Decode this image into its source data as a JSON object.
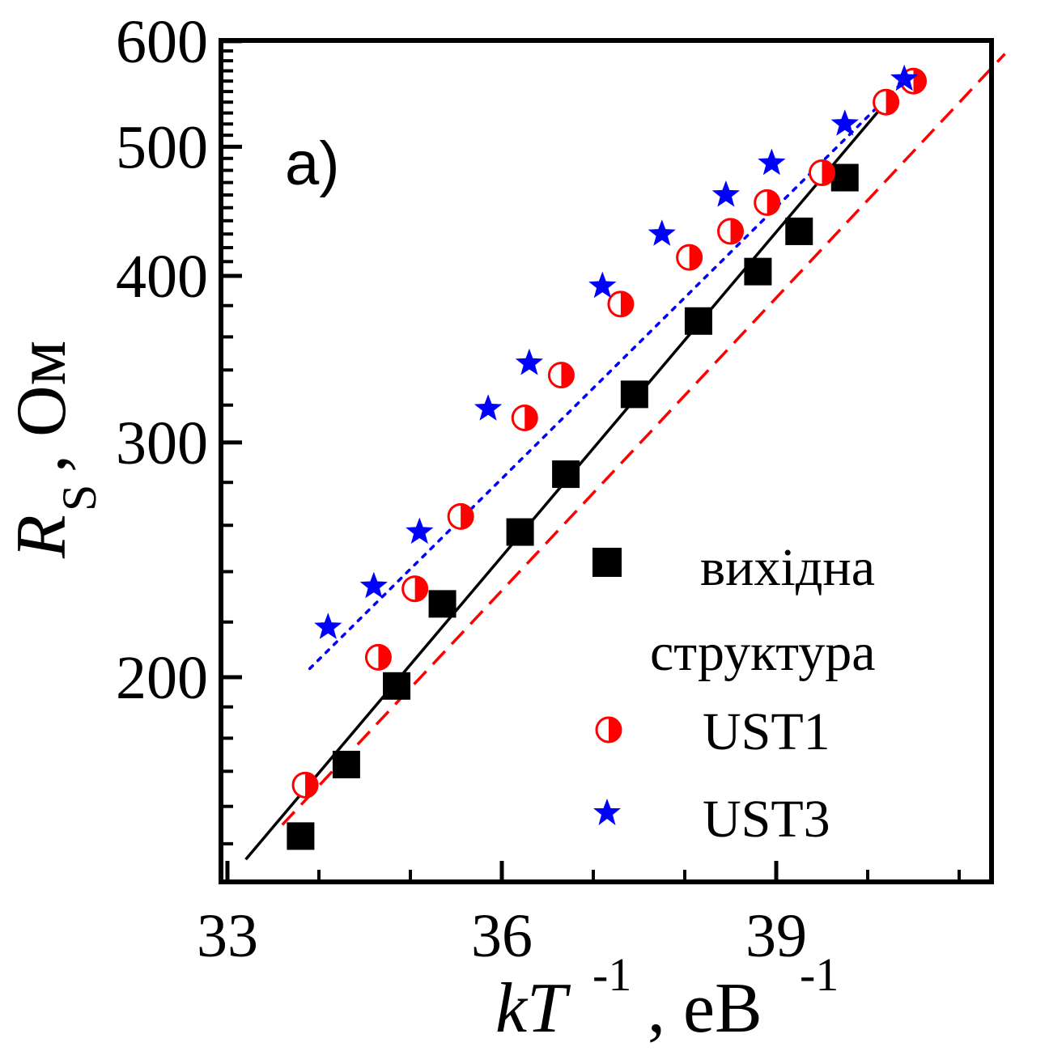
{
  "chart_data": {
    "type": "scatter",
    "panel_label": "a)",
    "xlabel": {
      "main": "kT",
      "sup": "-1",
      "unit": ", eB",
      "unit_sup": "-1"
    },
    "ylabel": {
      "main": "R",
      "sub": "S",
      "unit": ", Ом"
    },
    "x_scale": "linear",
    "y_scale": "log",
    "xlim": [
      33,
      41.5
    ],
    "ylim": [
      138,
      600
    ],
    "x_ticks": [
      33,
      36,
      39
    ],
    "x_tick_labels": [
      "33",
      "36",
      "39"
    ],
    "y_ticks": [
      200,
      300,
      400,
      500,
      600
    ],
    "y_tick_labels": [
      "200",
      "300",
      "400",
      "500",
      "600"
    ],
    "grid": false,
    "legend_position": "bottom-right",
    "legend_entries": [
      "вихідна",
      "структура",
      "UST1",
      "UST3"
    ],
    "series": [
      {
        "name": "вихідна структура",
        "marker": "square",
        "color": "#000000",
        "fit_line": "solid",
        "fit": [
          [
            33.2,
            146
          ],
          [
            40.25,
            545
          ]
        ],
        "points": [
          [
            33.8,
            152
          ],
          [
            34.3,
            172
          ],
          [
            34.85,
            197
          ],
          [
            35.35,
            227
          ],
          [
            36.2,
            257
          ],
          [
            36.7,
            284
          ],
          [
            37.45,
            326
          ],
          [
            38.15,
            370
          ],
          [
            38.8,
            403
          ],
          [
            39.25,
            432
          ],
          [
            39.75,
            474
          ]
        ]
      },
      {
        "name": "UST1",
        "marker": "half-filled-circle",
        "color": "#ff0000",
        "fit_line": "dashed",
        "fit": [
          [
            33.6,
            155
          ],
          [
            41.5,
            587
          ]
        ],
        "points": [
          [
            33.85,
            166
          ],
          [
            34.65,
            207
          ],
          [
            35.05,
            233
          ],
          [
            35.55,
            264
          ],
          [
            36.25,
            313
          ],
          [
            36.65,
            337
          ],
          [
            37.3,
            381
          ],
          [
            38.05,
            413
          ],
          [
            38.5,
            432
          ],
          [
            38.9,
            454
          ],
          [
            39.5,
            478
          ],
          [
            40.2,
            540
          ],
          [
            40.5,
            560
          ]
        ]
      },
      {
        "name": "UST3",
        "marker": "star",
        "color": "#0000ff",
        "fit_line": "dotted",
        "fit": [
          [
            33.9,
            203
          ],
          [
            40.45,
            565
          ]
        ],
        "points": [
          [
            34.1,
            218
          ],
          [
            34.6,
            234
          ],
          [
            35.1,
            257
          ],
          [
            35.85,
            318
          ],
          [
            36.3,
            344
          ],
          [
            37.1,
            393
          ],
          [
            37.75,
            430
          ],
          [
            38.45,
            460
          ],
          [
            38.95,
            486
          ],
          [
            39.75,
            520
          ],
          [
            40.4,
            562
          ]
        ]
      }
    ]
  }
}
